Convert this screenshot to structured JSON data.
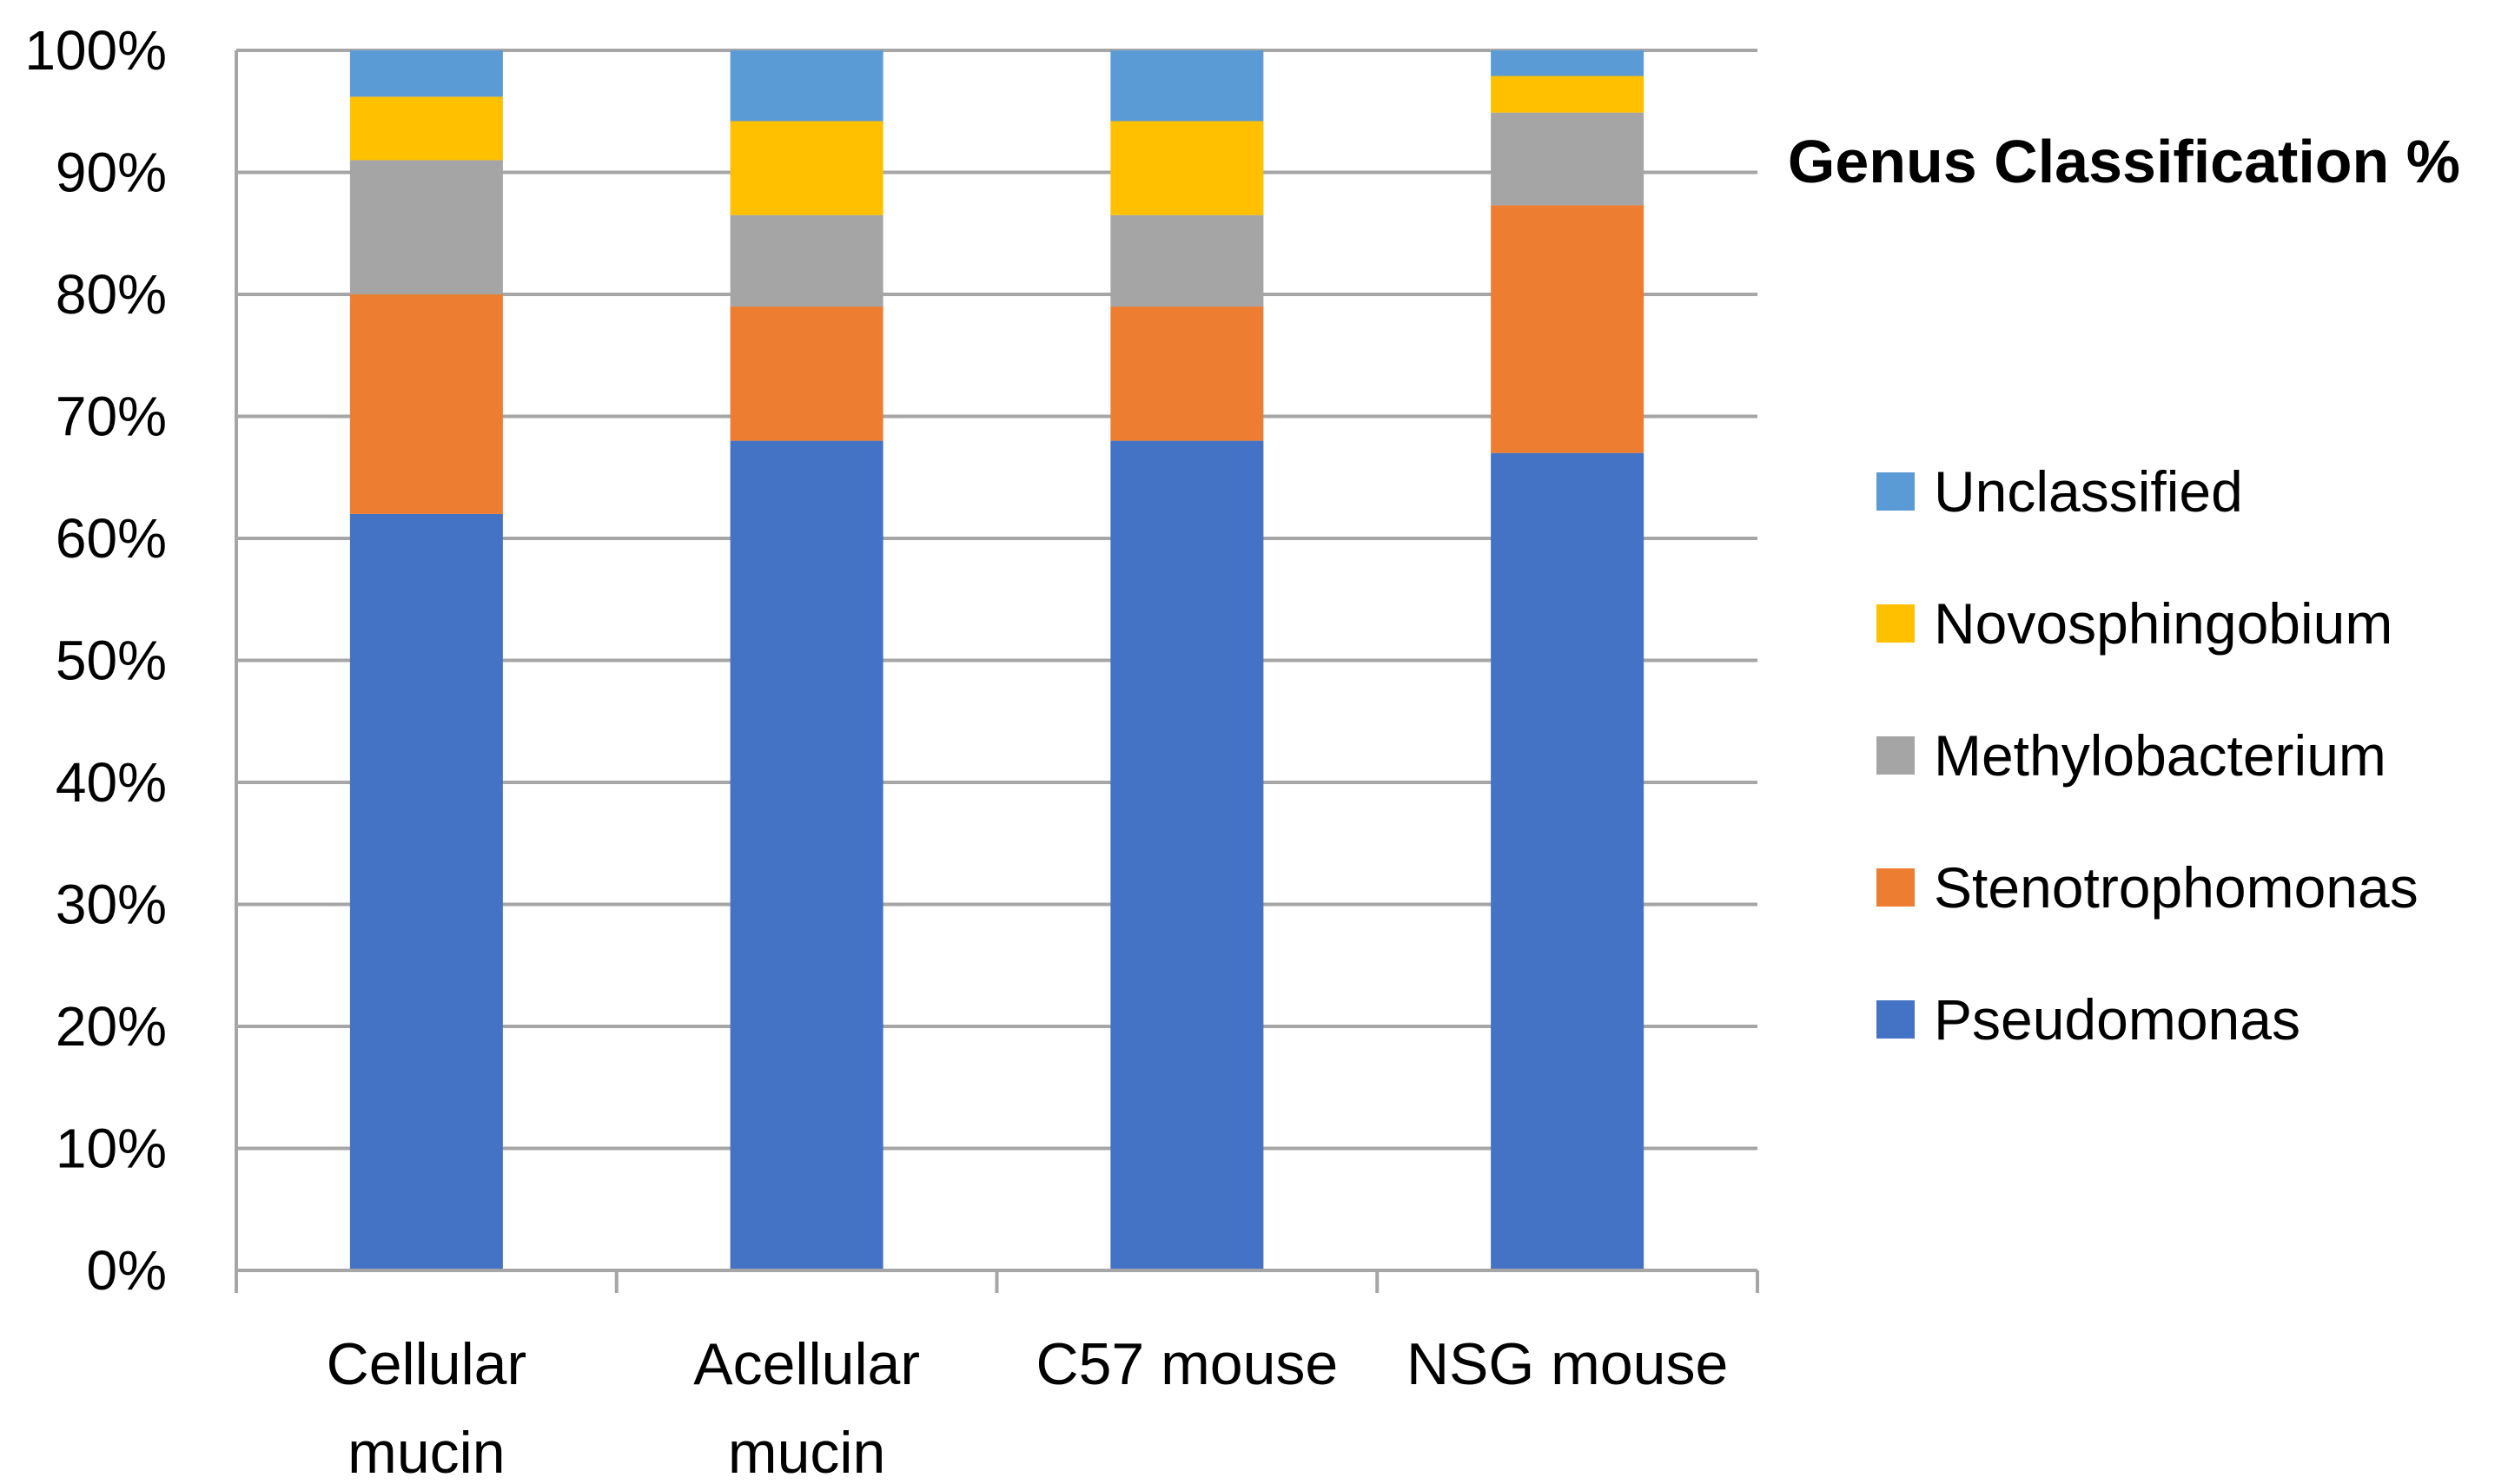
{
  "chart_data": {
    "type": "bar",
    "stacked": true,
    "normalized_percent": true,
    "title": "Genus Classification %",
    "categories": [
      [
        "Cellular",
        "mucin"
      ],
      [
        "Acellular",
        "mucin"
      ],
      [
        "C57 mouse"
      ],
      [
        "NSG mouse"
      ]
    ],
    "series": [
      {
        "name": "Pseudomonas",
        "color": "#4472C4",
        "values": [
          62,
          68,
          68,
          67
        ]
      },
      {
        "name": "Stenotrophomonas",
        "color": "#ED7D31",
        "values": [
          18,
          11,
          11,
          20.3
        ]
      },
      {
        "name": "Methylobacterium",
        "color": "#A5A5A5",
        "values": [
          11,
          7.5,
          7.5,
          7.6
        ]
      },
      {
        "name": "Novosphingobium",
        "color": "#FFC000",
        "values": [
          5.2,
          7.7,
          7.7,
          3.0
        ]
      },
      {
        "name": "Unclassified",
        "color": "#5B9BD5",
        "values": [
          3.8,
          5.8,
          5.8,
          2.1
        ]
      }
    ],
    "y_ticks": [
      "0%",
      "10%",
      "20%",
      "30%",
      "40%",
      "50%",
      "60%",
      "70%",
      "80%",
      "90%",
      "100%"
    ],
    "ylim": [
      0,
      100
    ],
    "grid": true,
    "legend_position": "right"
  }
}
